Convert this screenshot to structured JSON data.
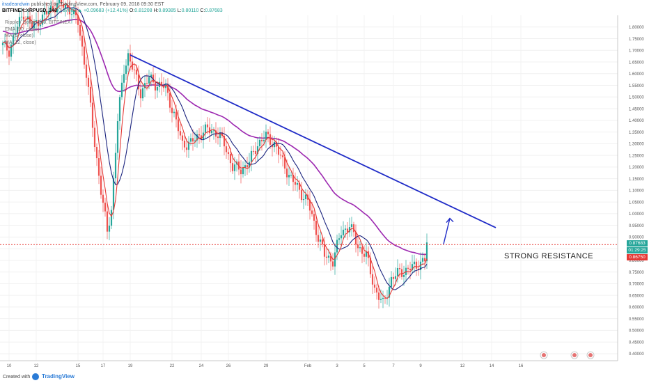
{
  "header": {
    "author": "itradeandwin",
    "published_text": "published on TradingView.com, February 09, 2018 09:30 EST",
    "symbol": "BITFINEX:XRPUSD, 240",
    "last": "0.87683",
    "change": "▲ +0.09683 (+12.41%)",
    "open_label": "O:",
    "open": "0.81208",
    "high_label": "H:",
    "high": "0.89385",
    "low_label": "L:",
    "low": "0.80110",
    "close_label": "C:",
    "close": "0.87683"
  },
  "legend": {
    "title": "Ripple / Dollar, 240, BITFINEX",
    "ema": "EMA (50, close)",
    "ma5": "MA (5, close)",
    "ma12": "MA (12, close)"
  },
  "annotation": {
    "text": "STRONG RESISTANCE"
  },
  "price_tags": {
    "last": "0.87683",
    "countdown": "01:29:25",
    "line": "0.86750"
  },
  "footer": {
    "created": "Created with",
    "brand": "TradingView"
  },
  "colors": {
    "up": "#26a69a",
    "down": "#ef5350",
    "ema": "#9c27b0",
    "ma5": "#e53935",
    "ma12": "#1a237e",
    "trendline": "#1f2bc7",
    "resistance": "#e53935"
  },
  "chart_data": {
    "type": "candlestick",
    "x_ticks": [
      "10",
      "12",
      "15",
      "17",
      "19",
      "22",
      "24",
      "26",
      "29",
      "Feb",
      "3",
      "5",
      "7",
      "9",
      "12",
      "14",
      "16"
    ],
    "y_ticks": [
      "0.40000",
      "0.45000",
      "0.50000",
      "0.55000",
      "0.60000",
      "0.65000",
      "0.70000",
      "0.75000",
      "0.80000",
      "0.85000",
      "0.90000",
      "0.95000",
      "1.00000",
      "1.05000",
      "1.10000",
      "1.15000",
      "1.20000",
      "1.25000",
      "1.30000",
      "1.35000",
      "1.40000",
      "1.45000",
      "1.50000",
      "1.55000",
      "1.60000",
      "1.65000",
      "1.70000",
      "1.75000",
      "1.80000"
    ],
    "ylim": [
      0.37,
      1.85
    ],
    "x_count": 235,
    "price_path": [
      [
        0,
        1.72
      ],
      [
        3,
        1.7
      ],
      [
        6,
        1.78
      ],
      [
        10,
        1.86
      ],
      [
        14,
        1.8
      ],
      [
        26,
        1.9
      ],
      [
        32,
        1.88
      ],
      [
        36,
        1.82
      ],
      [
        40,
        1.6
      ],
      [
        44,
        1.3
      ],
      [
        47,
        1.1
      ],
      [
        50,
        0.92
      ],
      [
        52,
        1.02
      ],
      [
        55,
        1.4
      ],
      [
        58,
        1.62
      ],
      [
        60,
        1.68
      ],
      [
        63,
        1.6
      ],
      [
        66,
        1.52
      ],
      [
        70,
        1.58
      ],
      [
        74,
        1.55
      ],
      [
        78,
        1.54
      ],
      [
        82,
        1.42
      ],
      [
        86,
        1.3
      ],
      [
        90,
        1.3
      ],
      [
        94,
        1.34
      ],
      [
        98,
        1.36
      ],
      [
        102,
        1.35
      ],
      [
        106,
        1.3
      ],
      [
        110,
        1.2
      ],
      [
        114,
        1.19
      ],
      [
        118,
        1.22
      ],
      [
        122,
        1.3
      ],
      [
        126,
        1.33
      ],
      [
        130,
        1.3
      ],
      [
        134,
        1.22
      ],
      [
        138,
        1.15
      ],
      [
        142,
        1.1
      ],
      [
        146,
        1.05
      ],
      [
        150,
        0.93
      ],
      [
        154,
        0.82
      ],
      [
        158,
        0.8
      ],
      [
        162,
        0.92
      ],
      [
        166,
        0.95
      ],
      [
        170,
        0.86
      ],
      [
        174,
        0.82
      ],
      [
        178,
        0.68
      ],
      [
        182,
        0.61
      ],
      [
        186,
        0.72
      ],
      [
        190,
        0.75
      ],
      [
        194,
        0.76
      ],
      [
        198,
        0.78
      ],
      [
        202,
        0.8
      ],
      [
        203,
        0.87683
      ]
    ],
    "trendline": {
      "x1": 61,
      "y1": 1.68,
      "x2": 236,
      "y2": 0.94
    },
    "resistance_level": 0.8675,
    "arrow": {
      "x1": 211,
      "y1": 0.87,
      "x2": 214,
      "y2": 0.98
    },
    "x_index_ticks": [
      3,
      16,
      36,
      48,
      61,
      81,
      95,
      108,
      126,
      146,
      160,
      173,
      187,
      200,
      220,
      234,
      248
    ]
  }
}
